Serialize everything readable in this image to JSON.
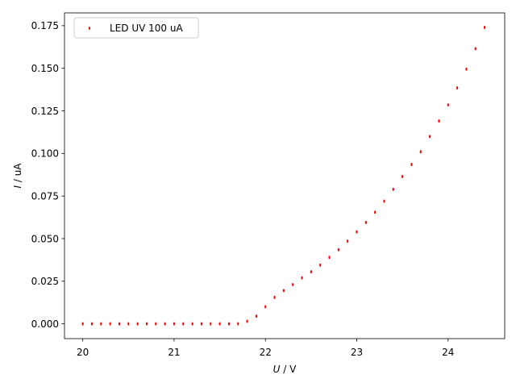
{
  "chart_data": {
    "type": "scatter",
    "title": "",
    "xlabel_var": "U",
    "xlabel_unit": " / V",
    "ylabel_var": "I",
    "ylabel_unit": " / uA",
    "xlim": [
      19.8,
      24.62
    ],
    "ylim": [
      -0.0087,
      0.1825
    ],
    "xticks": [
      20,
      21,
      22,
      23,
      24
    ],
    "yticks": [
      0.0,
      0.025,
      0.05,
      0.075,
      0.1,
      0.125,
      0.15,
      0.175
    ],
    "ytick_labels": [
      "0.000",
      "0.025",
      "0.050",
      "0.075",
      "0.100",
      "0.125",
      "0.150",
      "0.175"
    ],
    "grid": false,
    "legend_position": "top-left",
    "marker_color": "#ff0000",
    "series": [
      {
        "name": "LED UV 100 uA",
        "x": [
          20.0,
          20.1,
          20.2,
          20.3,
          20.4,
          20.5,
          20.6,
          20.7,
          20.8,
          20.9,
          21.0,
          21.1,
          21.2,
          21.3,
          21.4,
          21.5,
          21.6,
          21.7,
          21.8,
          21.9,
          22.0,
          22.1,
          22.2,
          22.3,
          22.4,
          22.5,
          22.6,
          22.7,
          22.8,
          22.9,
          23.0,
          23.1,
          23.2,
          23.3,
          23.4,
          23.5,
          23.6,
          23.7,
          23.8,
          23.9,
          24.0,
          24.1,
          24.2,
          24.3,
          24.4
        ],
        "y": [
          0.0,
          0.0,
          0.0,
          0.0,
          0.0,
          0.0,
          0.0,
          0.0,
          0.0,
          0.0,
          0.0,
          0.0,
          0.0,
          0.0,
          0.0,
          0.0,
          0.0,
          0.0,
          0.0015,
          0.0045,
          0.01,
          0.0155,
          0.0195,
          0.023,
          0.027,
          0.0305,
          0.0345,
          0.039,
          0.0435,
          0.0485,
          0.054,
          0.0595,
          0.0655,
          0.072,
          0.079,
          0.0865,
          0.0935,
          0.101,
          0.11,
          0.119,
          0.1285,
          0.1385,
          0.1495,
          0.1615,
          0.174
        ]
      }
    ]
  }
}
